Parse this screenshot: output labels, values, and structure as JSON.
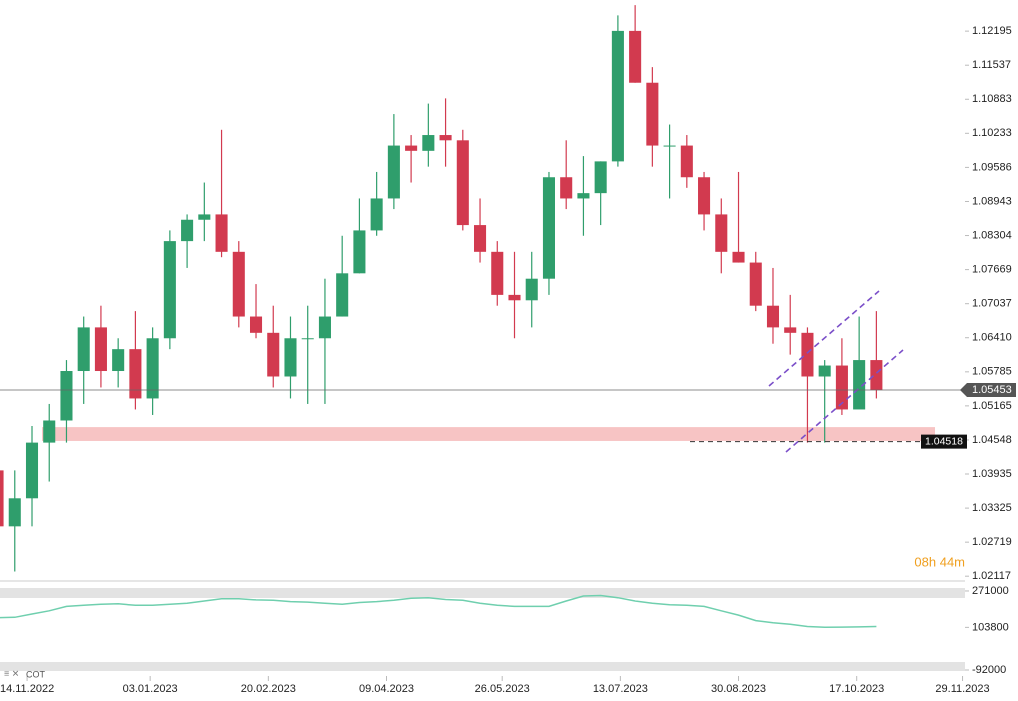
{
  "chart_data": [
    {
      "type": "candlestick",
      "x": [
        "31.10.2022",
        "07.11.2022",
        "14.11.2022",
        "21.11.2022",
        "28.11.2022",
        "05.12.2022",
        "12.12.2022",
        "19.12.2022",
        "26.12.2022",
        "02.01.2023",
        "09.01.2023",
        "16.01.2023",
        "23.01.2023",
        "30.01.2023",
        "06.02.2023",
        "13.02.2023",
        "20.02.2023",
        "27.02.2023",
        "06.03.2023",
        "13.03.2023",
        "20.03.2023",
        "27.03.2023",
        "03.04.2023",
        "10.04.2023",
        "17.04.2023",
        "24.04.2023",
        "01.05.2023",
        "08.05.2023",
        "15.05.2023",
        "22.05.2023",
        "29.05.2023",
        "05.06.2023",
        "12.06.2023",
        "19.06.2023",
        "26.06.2023",
        "03.07.2023",
        "10.07.2023",
        "17.07.2023",
        "24.07.2023",
        "31.07.2023",
        "07.08.2023",
        "14.08.2023",
        "21.08.2023",
        "28.08.2023",
        "04.09.2023",
        "11.09.2023",
        "18.09.2023",
        "25.09.2023",
        "02.10.2023",
        "09.10.2023",
        "16.10.2023",
        "23.10.2023"
      ],
      "open": [
        1.04,
        1.03,
        1.035,
        1.045,
        1.049,
        1.058,
        1.066,
        1.058,
        1.062,
        1.053,
        1.064,
        1.082,
        1.086,
        1.087,
        1.08,
        1.068,
        1.065,
        1.057,
        1.064,
        1.064,
        1.068,
        1.076,
        1.084,
        1.09,
        1.1,
        1.099,
        1.102,
        1.101,
        1.085,
        1.08,
        1.072,
        1.071,
        1.075,
        1.094,
        1.09,
        1.091,
        1.097,
        1.122,
        1.112,
        1.1,
        1.1,
        1.094,
        1.087,
        1.08,
        1.078,
        1.07,
        1.066,
        1.065,
        1.057,
        1.059,
        1.051,
        1.06
      ],
      "high": [
        1.043,
        1.04,
        1.048,
        1.052,
        1.06,
        1.068,
        1.07,
        1.064,
        1.069,
        1.066,
        1.084,
        1.087,
        1.093,
        1.103,
        1.082,
        1.074,
        1.07,
        1.068,
        1.07,
        1.075,
        1.083,
        1.09,
        1.095,
        1.106,
        1.102,
        1.108,
        1.109,
        1.103,
        1.09,
        1.082,
        1.08,
        1.08,
        1.095,
        1.101,
        1.098,
        1.097,
        1.125,
        1.127,
        1.115,
        1.104,
        1.102,
        1.095,
        1.09,
        1.095,
        1.08,
        1.077,
        1.072,
        1.066,
        1.06,
        1.064,
        1.068,
        1.069
      ],
      "low": [
        1.022,
        1.022,
        1.03,
        1.038,
        1.045,
        1.052,
        1.055,
        1.055,
        1.051,
        1.05,
        1.062,
        1.077,
        1.082,
        1.079,
        1.066,
        1.064,
        1.055,
        1.053,
        1.052,
        1.052,
        1.068,
        1.076,
        1.083,
        1.088,
        1.093,
        1.096,
        1.096,
        1.084,
        1.078,
        1.07,
        1.064,
        1.066,
        1.072,
        1.088,
        1.083,
        1.085,
        1.096,
        1.112,
        1.096,
        1.09,
        1.092,
        1.084,
        1.076,
        1.078,
        1.069,
        1.063,
        1.061,
        1.045,
        1.045,
        1.05,
        1.052,
        1.053
      ],
      "close": [
        1.03,
        1.035,
        1.045,
        1.049,
        1.058,
        1.066,
        1.058,
        1.062,
        1.053,
        1.064,
        1.082,
        1.086,
        1.087,
        1.08,
        1.068,
        1.065,
        1.057,
        1.064,
        1.064,
        1.068,
        1.076,
        1.084,
        1.09,
        1.1,
        1.099,
        1.102,
        1.101,
        1.085,
        1.08,
        1.072,
        1.071,
        1.075,
        1.094,
        1.09,
        1.091,
        1.097,
        1.122,
        1.112,
        1.1,
        1.1,
        1.094,
        1.087,
        1.08,
        1.078,
        1.07,
        1.066,
        1.065,
        1.057,
        1.059,
        1.051,
        1.06,
        1.05453
      ],
      "up_color": "#2f9e6c",
      "down_color": "#d23a4f",
      "ylim": [
        1.0205,
        1.128
      ],
      "log_scale": true,
      "yticks": [
        1.12195,
        1.11537,
        1.10883,
        1.10233,
        1.09586,
        1.08943,
        1.08304,
        1.07669,
        1.07037,
        {
          "value": 1.0641,
          "label": "1.06410"
        },
        1.05785,
        1.05165,
        1.04548,
        1.03935,
        1.03325,
        1.02719,
        1.02117
      ],
      "xlim": [
        "03.11.2022",
        "30.11.2023"
      ],
      "xticks": [
        "14.11.2022",
        "03.01.2023",
        "20.02.2023",
        "09.04.2023",
        "26.05.2023",
        "13.07.2023",
        "30.08.2023",
        "17.10.2023",
        "29.11.2023"
      ],
      "current_price": 1.05453,
      "level": 1.04518,
      "zone": [
        1.0453,
        1.0478
      ],
      "countdown": "08h 44m"
    },
    {
      "type": "line",
      "name": "COT",
      "color": "#6fcfae",
      "axis": "y2",
      "values": [
        148000,
        150000,
        165000,
        180000,
        200000,
        205000,
        210000,
        212000,
        205000,
        205000,
        210000,
        215000,
        225000,
        235000,
        235000,
        230000,
        228000,
        222000,
        220000,
        215000,
        210000,
        218000,
        222000,
        228000,
        238000,
        240000,
        232000,
        228000,
        215000,
        205000,
        200000,
        200000,
        200000,
        225000,
        248000,
        250000,
        240000,
        225000,
        215000,
        208000,
        205000,
        200000,
        180000,
        160000,
        135000,
        125000,
        118000,
        108000,
        104000,
        105000,
        106000,
        108000
      ],
      "y2lim": [
        -119600,
        303000
      ],
      "y2ticks": [
        271000,
        103800,
        -92000
      ]
    }
  ]
}
